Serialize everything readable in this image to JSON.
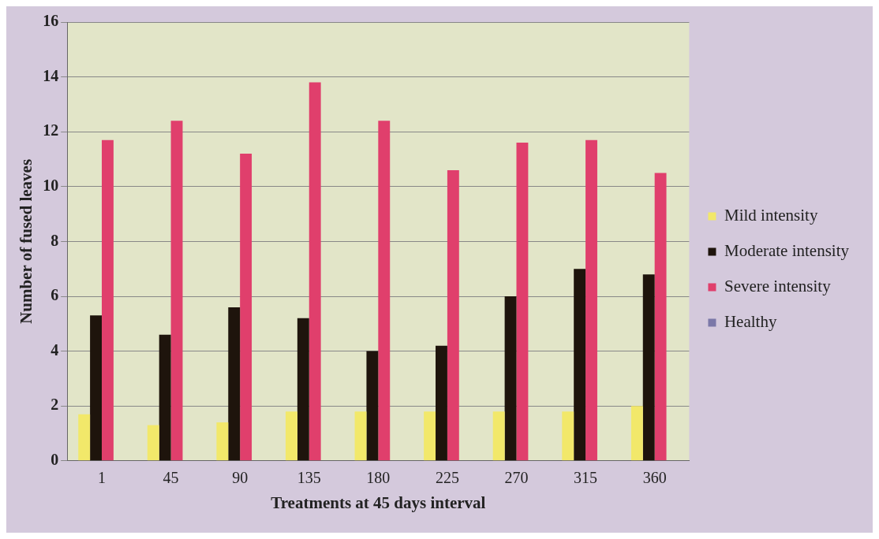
{
  "chart_data": {
    "type": "bar",
    "xlabel": "Treatments at 45 days interval",
    "ylabel": "Number of fused leaves",
    "categories": [
      "1",
      "45",
      "90",
      "135",
      "180",
      "225",
      "270",
      "315",
      "360"
    ],
    "series": [
      {
        "name": "Mild intensity",
        "color": "#f2e86a",
        "values": [
          1.7,
          1.3,
          1.4,
          1.8,
          1.8,
          1.8,
          1.8,
          1.8,
          2.0
        ]
      },
      {
        "name": "Moderate intensity",
        "color": "#1e140c",
        "values": [
          5.3,
          4.6,
          5.6,
          5.2,
          4.0,
          4.2,
          6.0,
          7.0,
          6.8
        ]
      },
      {
        "name": "Severe intensity",
        "color": "#e03f6c",
        "values": [
          11.7,
          12.4,
          11.2,
          13.8,
          12.4,
          10.6,
          11.6,
          11.7,
          10.5
        ]
      },
      {
        "name": "Healthy",
        "color": "#7b78a8",
        "values": [
          0,
          0,
          0,
          0,
          0,
          0,
          0,
          0,
          0
        ]
      }
    ],
    "ylim": [
      0,
      16
    ],
    "yticks": [
      0,
      2,
      4,
      6,
      8,
      10,
      12,
      14,
      16
    ],
    "grid": "y",
    "legend": "right"
  }
}
